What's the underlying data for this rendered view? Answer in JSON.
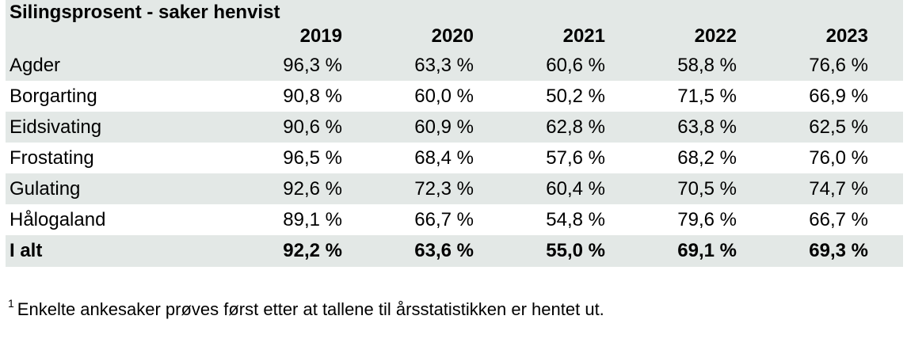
{
  "table": {
    "title": "Silingsprosent - saker henvist",
    "years": [
      "2019",
      "2020",
      "2021",
      "2022",
      "2023"
    ],
    "rows": [
      {
        "label": "Agder",
        "values": [
          "96,3 %",
          "63,3 %",
          "60,6 %",
          "58,8 %",
          "76,6 %"
        ]
      },
      {
        "label": "Borgarting",
        "values": [
          "90,8 %",
          "60,0 %",
          "50,2 %",
          "71,5 %",
          "66,9 %"
        ]
      },
      {
        "label": "Eidsivating",
        "values": [
          "90,6 %",
          "60,9 %",
          "62,8 %",
          "63,8 %",
          "62,5 %"
        ]
      },
      {
        "label": "Frostating",
        "values": [
          "96,5 %",
          "68,4 %",
          "57,6 %",
          "68,2 %",
          "76,0 %"
        ]
      },
      {
        "label": "Gulating",
        "values": [
          "92,6 %",
          "72,3 %",
          "60,4 %",
          "70,5 %",
          "74,7 %"
        ]
      },
      {
        "label": "Hålogaland",
        "values": [
          "89,1 %",
          "66,7 %",
          "54,8 %",
          "79,6 %",
          "66,7 %"
        ]
      }
    ],
    "total": {
      "label": "I alt",
      "values": [
        "92,2 %",
        "63,6 %",
        "55,0 %",
        "69,1 %",
        "69,3 %"
      ]
    }
  },
  "footnote": {
    "marker": "1",
    "text": "Enkelte ankesaker prøves først etter at tallene til årsstatistikken er hentet ut."
  },
  "colors": {
    "shade": "#e3e8e6",
    "text": "#000000"
  }
}
